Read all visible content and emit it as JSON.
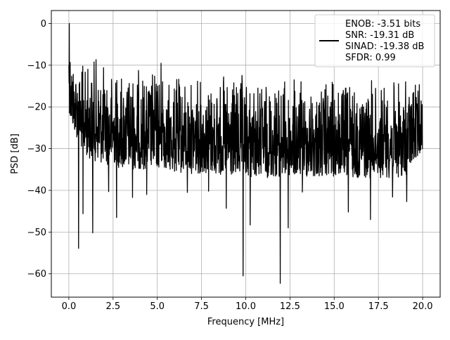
{
  "chart_data": {
    "type": "line",
    "title": "",
    "xlabel": "Frequency [MHz]",
    "ylabel": "PSD [dB]",
    "xlim": [
      -0.99,
      20.99
    ],
    "ylim": [
      -65.6,
      3.1
    ],
    "xticks": [
      0.0,
      2.5,
      5.0,
      7.5,
      10.0,
      12.5,
      15.0,
      17.5,
      20.0
    ],
    "xtick_labels": [
      "0.0",
      "2.5",
      "5.0",
      "7.5",
      "10.0",
      "12.5",
      "15.0",
      "17.5",
      "20.0"
    ],
    "yticks": [
      0,
      -10,
      -20,
      -30,
      -40,
      -50,
      -60
    ],
    "ytick_labels": [
      "0",
      "−10",
      "−20",
      "−30",
      "−40",
      "−50",
      "−60"
    ],
    "grid": true,
    "legend": {
      "placement": "top-right",
      "entries": [
        "ENOB: -3.51 bits",
        "SNR: -19.31 dB",
        "SINAD: -19.38 dB",
        "SFDR: 0.99"
      ]
    },
    "series": [
      {
        "color": "#000000",
        "envelope_x": [
          0.0,
          0.05,
          0.1,
          0.2,
          0.3,
          0.5,
          0.7,
          1.0,
          1.5,
          2.0,
          2.5,
          3.0,
          4.0,
          5.0,
          5.3,
          5.5,
          6.0,
          7.0,
          8.0,
          9.0,
          10.0,
          11.0,
          12.0,
          13.0,
          14.0,
          15.0,
          16.0,
          17.0,
          18.0,
          19.0,
          20.0
        ],
        "envelope_top": [
          -10,
          0,
          -2,
          -6,
          -7,
          -8,
          -9,
          -9,
          -7,
          -9,
          -10,
          -10,
          -10,
          -10,
          -3,
          -14,
          -12,
          -12,
          -12,
          -12,
          -12,
          -13,
          -12,
          -13,
          -13,
          -13,
          -13,
          -13,
          -13,
          -13,
          -13
        ],
        "envelope_bottom": [
          -20,
          -22,
          -24,
          -25,
          -26,
          -28,
          -30,
          -32,
          -33,
          -34,
          -34,
          -35,
          -35,
          -35,
          -35,
          -35,
          -36,
          -36,
          -36,
          -37,
          -37,
          -37,
          -37,
          -37,
          -37,
          -37,
          -37,
          -37,
          -37,
          -37,
          -30
        ],
        "dips": [
          {
            "x": 0.55,
            "y": -53.9
          },
          {
            "x": 0.8,
            "y": -45.6
          },
          {
            "x": 1.35,
            "y": -50.2
          },
          {
            "x": 2.25,
            "y": -40.3
          },
          {
            "x": 2.7,
            "y": -46.5
          },
          {
            "x": 3.6,
            "y": -41.7
          },
          {
            "x": 4.4,
            "y": -41.0
          },
          {
            "x": 6.7,
            "y": -40.5
          },
          {
            "x": 7.9,
            "y": -40.2
          },
          {
            "x": 8.9,
            "y": -44.3
          },
          {
            "x": 9.85,
            "y": -60.5
          },
          {
            "x": 10.25,
            "y": -48.3
          },
          {
            "x": 11.95,
            "y": -62.3
          },
          {
            "x": 12.4,
            "y": -49.0
          },
          {
            "x": 13.2,
            "y": -40.4
          },
          {
            "x": 15.8,
            "y": -45.2
          },
          {
            "x": 17.05,
            "y": -47.0
          },
          {
            "x": 18.3,
            "y": -41.6
          },
          {
            "x": 19.1,
            "y": -42.7
          }
        ]
      }
    ]
  }
}
